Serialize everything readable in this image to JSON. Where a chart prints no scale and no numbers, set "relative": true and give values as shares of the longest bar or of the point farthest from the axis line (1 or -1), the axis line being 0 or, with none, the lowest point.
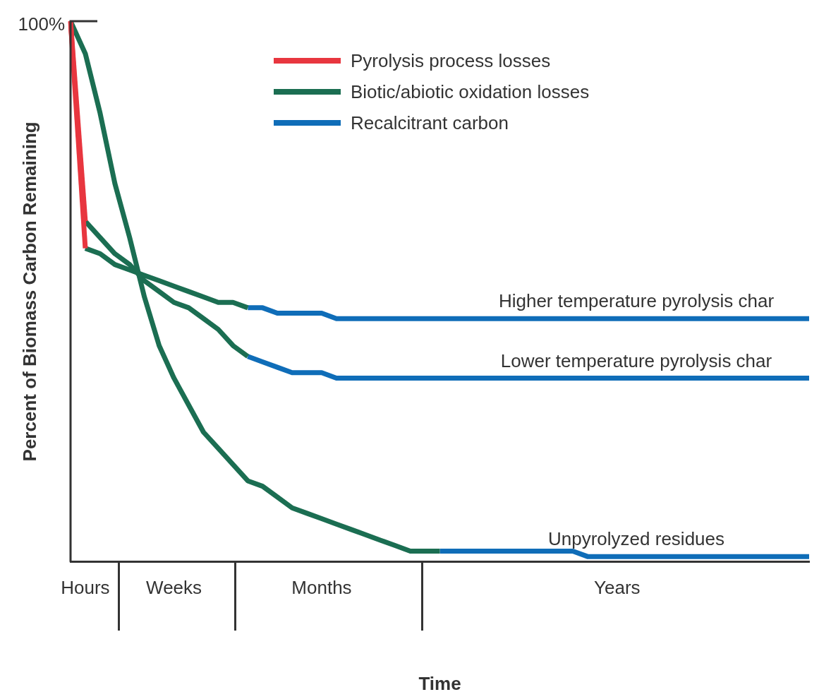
{
  "chart_data": {
    "type": "line",
    "relative": true,
    "xlabel": "Time",
    "ylabel": "Percent of Biomass Carbon Remaining",
    "legend": "top",
    "categories": [
      null,
      "Hours",
      null,
      null,
      null,
      null,
      null,
      "Weeks",
      null,
      null,
      null,
      null,
      null,
      null,
      null,
      null,
      null,
      "Months",
      null,
      null,
      null,
      null,
      null,
      null,
      null,
      null,
      null,
      null,
      null,
      null,
      null,
      null,
      null,
      null,
      null,
      null,
      null,
      "Years",
      null,
      null,
      null,
      null,
      null,
      null,
      null,
      null,
      null,
      null,
      null,
      null,
      null
    ],
    "series": [
      {
        "name": "Pyrolysis process losses",
        "color": "#e8363f",
        "values": [
          1,
          0.58,
          null,
          null,
          null,
          null,
          null,
          null,
          null,
          null,
          null,
          null,
          null,
          null,
          null,
          null,
          null,
          null,
          null,
          null,
          null,
          null,
          null,
          null,
          null,
          null,
          null,
          null,
          null,
          null,
          null,
          null,
          null,
          null,
          null,
          null,
          null,
          null,
          null,
          null,
          null,
          null,
          null,
          null,
          null,
          null,
          null,
          null,
          null,
          null,
          null
        ]
      },
      {
        "color": "#e8363f",
        "values": [
          1,
          0.63,
          null,
          null,
          null,
          null,
          null,
          null,
          null,
          null,
          null,
          null,
          null,
          null,
          null,
          null,
          null,
          null,
          null,
          null,
          null,
          null,
          null,
          null,
          null,
          null,
          null,
          null,
          null,
          null,
          null,
          null,
          null,
          null,
          null,
          null,
          null,
          null,
          null,
          null,
          null,
          null,
          null,
          null,
          null,
          null,
          null,
          null,
          null,
          null,
          null
        ]
      },
      {
        "name": "Biotic/abiotic oxidation losses",
        "color": "#1b6e52",
        "values": [
          1,
          0.94,
          0.83,
          0.7,
          0.6,
          0.49,
          0.4,
          0.34,
          0.29,
          0.24,
          0.21,
          0.18,
          0.15,
          0.14,
          0.12,
          0.1,
          0.09,
          0.08,
          0.07,
          0.06,
          0.05,
          0.04,
          0.03,
          0.02,
          0.02,
          0.02,
          null,
          null,
          null,
          null,
          null,
          null,
          null,
          null,
          null,
          null,
          null,
          null,
          null,
          null,
          null,
          null,
          null,
          null,
          null,
          null,
          null,
          null,
          null,
          null,
          null
        ]
      },
      {
        "color": "#1b6e52",
        "values": [
          null,
          0.58,
          0.57,
          0.55,
          0.54,
          0.53,
          0.52,
          0.51,
          0.5,
          0.49,
          0.48,
          0.48,
          0.47,
          null,
          null,
          null,
          null,
          null,
          null,
          null,
          null,
          null,
          null,
          null,
          null,
          null,
          null,
          null,
          null,
          null,
          null,
          null,
          null,
          null,
          null,
          null,
          null,
          null,
          null,
          null,
          null,
          null,
          null,
          null,
          null,
          null,
          null,
          null,
          null,
          null,
          null
        ]
      },
      {
        "color": "#1b6e52",
        "values": [
          null,
          0.63,
          0.6,
          0.57,
          0.55,
          0.52,
          0.5,
          0.48,
          0.47,
          0.45,
          0.43,
          0.4,
          0.38,
          null,
          null,
          null,
          null,
          null,
          null,
          null,
          null,
          null,
          null,
          null,
          null,
          null,
          null,
          null,
          null,
          null,
          null,
          null,
          null,
          null,
          null,
          null,
          null,
          null,
          null,
          null,
          null,
          null,
          null,
          null,
          null,
          null,
          null,
          null,
          null,
          null,
          null
        ]
      },
      {
        "name": "Recalcitrant carbon",
        "color": "#0f6db8",
        "values": [
          null,
          null,
          null,
          null,
          null,
          null,
          null,
          null,
          null,
          null,
          null,
          null,
          0.47,
          0.47,
          0.46,
          0.46,
          0.46,
          0.46,
          0.45,
          0.45,
          0.45,
          0.45,
          0.45,
          0.45,
          0.45,
          0.45,
          0.45,
          0.45,
          0.45,
          0.45,
          0.45,
          0.45,
          0.45,
          0.45,
          0.45,
          0.45,
          0.45,
          0.45,
          0.45,
          0.45,
          0.45,
          0.45,
          0.45,
          0.45,
          0.45,
          0.45,
          0.45,
          0.45,
          0.45,
          0.45,
          0.45
        ]
      },
      {
        "color": "#0f6db8",
        "values": [
          null,
          null,
          null,
          null,
          null,
          null,
          null,
          null,
          null,
          null,
          null,
          null,
          0.38,
          0.37,
          0.36,
          0.35,
          0.35,
          0.35,
          0.34,
          0.34,
          0.34,
          0.34,
          0.34,
          0.34,
          0.34,
          0.34,
          0.34,
          0.34,
          0.34,
          0.34,
          0.34,
          0.34,
          0.34,
          0.34,
          0.34,
          0.34,
          0.34,
          0.34,
          0.34,
          0.34,
          0.34,
          0.34,
          0.34,
          0.34,
          0.34,
          0.34,
          0.34,
          0.34,
          0.34,
          0.34,
          0.34
        ]
      },
      {
        "color": "#0f6db8",
        "values": [
          null,
          null,
          null,
          null,
          null,
          null,
          null,
          null,
          null,
          null,
          null,
          null,
          null,
          null,
          null,
          null,
          null,
          null,
          null,
          null,
          null,
          null,
          null,
          null,
          null,
          0.02,
          0.02,
          0.02,
          0.02,
          0.02,
          0.02,
          0.02,
          0.02,
          0.02,
          0.02,
          0.01,
          0.01,
          0.01,
          0.01,
          0.01,
          0.01,
          0.01,
          0.01,
          0.01,
          0.01,
          0.01,
          0.01,
          0.01,
          0.01,
          0.01,
          0.01
        ]
      }
    ],
    "annotations": [
      "100%",
      {
        "text": "Higher temperature pyrolysis char",
        "y": 0.45
      },
      {
        "text": "Lower temperature pyrolysis char",
        "y": 0.34
      },
      {
        "text": "Unpyrolyzed residues",
        "y": 0.01
      }
    ]
  }
}
